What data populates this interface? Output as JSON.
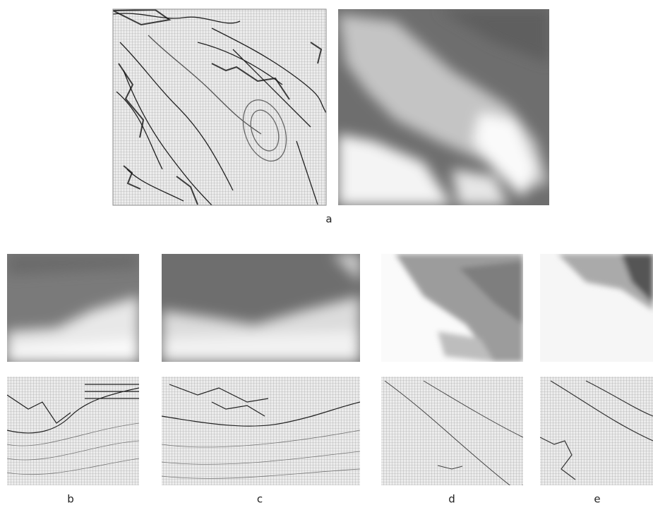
{
  "figure": {
    "labels": [
      "a",
      "b",
      "c",
      "d",
      "e"
    ]
  }
}
